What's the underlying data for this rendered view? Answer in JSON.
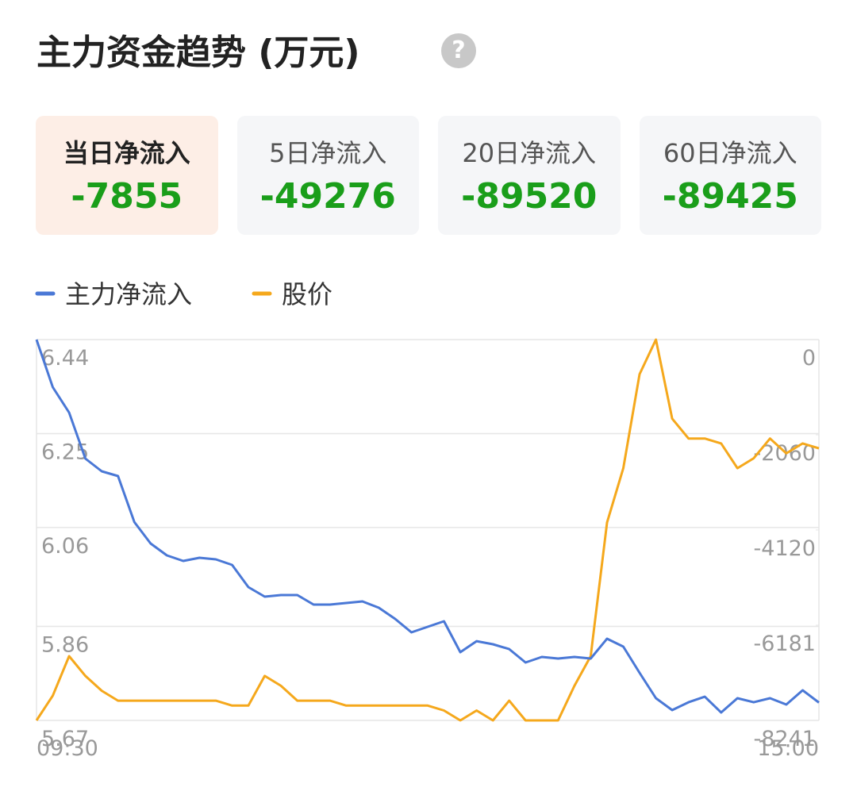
{
  "header": {
    "title": "主力资金趋势 (万元)",
    "help_icon": "?"
  },
  "summary": [
    {
      "label": "当日净流入",
      "value": -7855
    },
    {
      "label": "5日净流入",
      "value": -49276
    },
    {
      "label": "20日净流入",
      "value": -89520
    },
    {
      "label": "60日净流入",
      "value": -89425
    }
  ],
  "chart_data": {
    "type": "line",
    "categories": [
      "09:30",
      null,
      null,
      null,
      null,
      null,
      null,
      null,
      null,
      null,
      null,
      null,
      null,
      null,
      null,
      null,
      null,
      null,
      null,
      null,
      null,
      null,
      null,
      null,
      null,
      null,
      null,
      null,
      null,
      null,
      null,
      null,
      null,
      null,
      null,
      null,
      null,
      null,
      null,
      null,
      null,
      null,
      null,
      null,
      null,
      null,
      null,
      null,
      "15:00"
    ],
    "series": [
      {
        "name": "主力净流入",
        "color": "#4a78d6",
        "axis": "y2",
        "values": [
          0,
          -1030,
          -1580,
          -2575,
          -2850,
          -2953,
          -3949,
          -4413,
          -4670,
          -4790,
          -4722,
          -4756,
          -4876,
          -5357,
          -5563,
          -5529,
          -5529,
          -5735,
          -5735,
          -5700,
          -5666,
          -5803,
          -6044,
          -6336,
          -6215,
          -6095,
          -6765,
          -6525,
          -6593,
          -6697,
          -6988,
          -6868,
          -6902,
          -6868,
          -6902,
          -6473,
          -6645,
          -7211,
          -7761,
          -8018,
          -7847,
          -7727,
          -8070,
          -7761,
          -7847,
          -7761,
          -7898,
          -7589,
          -7855
        ]
      },
      {
        "name": "股价",
        "color": "#f5a81c",
        "values": [
          5.67,
          5.72,
          5.8,
          5.76,
          5.73,
          5.71,
          5.71,
          5.71,
          5.71,
          5.71,
          5.71,
          5.71,
          5.7,
          5.7,
          5.76,
          5.74,
          5.71,
          5.71,
          5.71,
          5.7,
          5.7,
          5.7,
          5.7,
          5.7,
          5.7,
          5.69,
          5.67,
          5.69,
          5.67,
          5.71,
          5.67,
          5.67,
          5.67,
          5.74,
          5.8,
          6.07,
          6.18,
          6.37,
          6.44,
          6.28,
          6.24,
          6.24,
          6.23,
          6.18,
          6.2,
          6.24,
          6.21,
          6.23,
          6.22
        ]
      }
    ],
    "ylim": [
      5.67,
      6.44
    ],
    "yticks": [
      6.44,
      6.25,
      6.06,
      5.86,
      5.67
    ],
    "y2lim": [
      -8241,
      0
    ],
    "y2ticks": [
      0,
      -2060,
      -4120,
      -6181,
      -8241
    ],
    "grid": true
  }
}
